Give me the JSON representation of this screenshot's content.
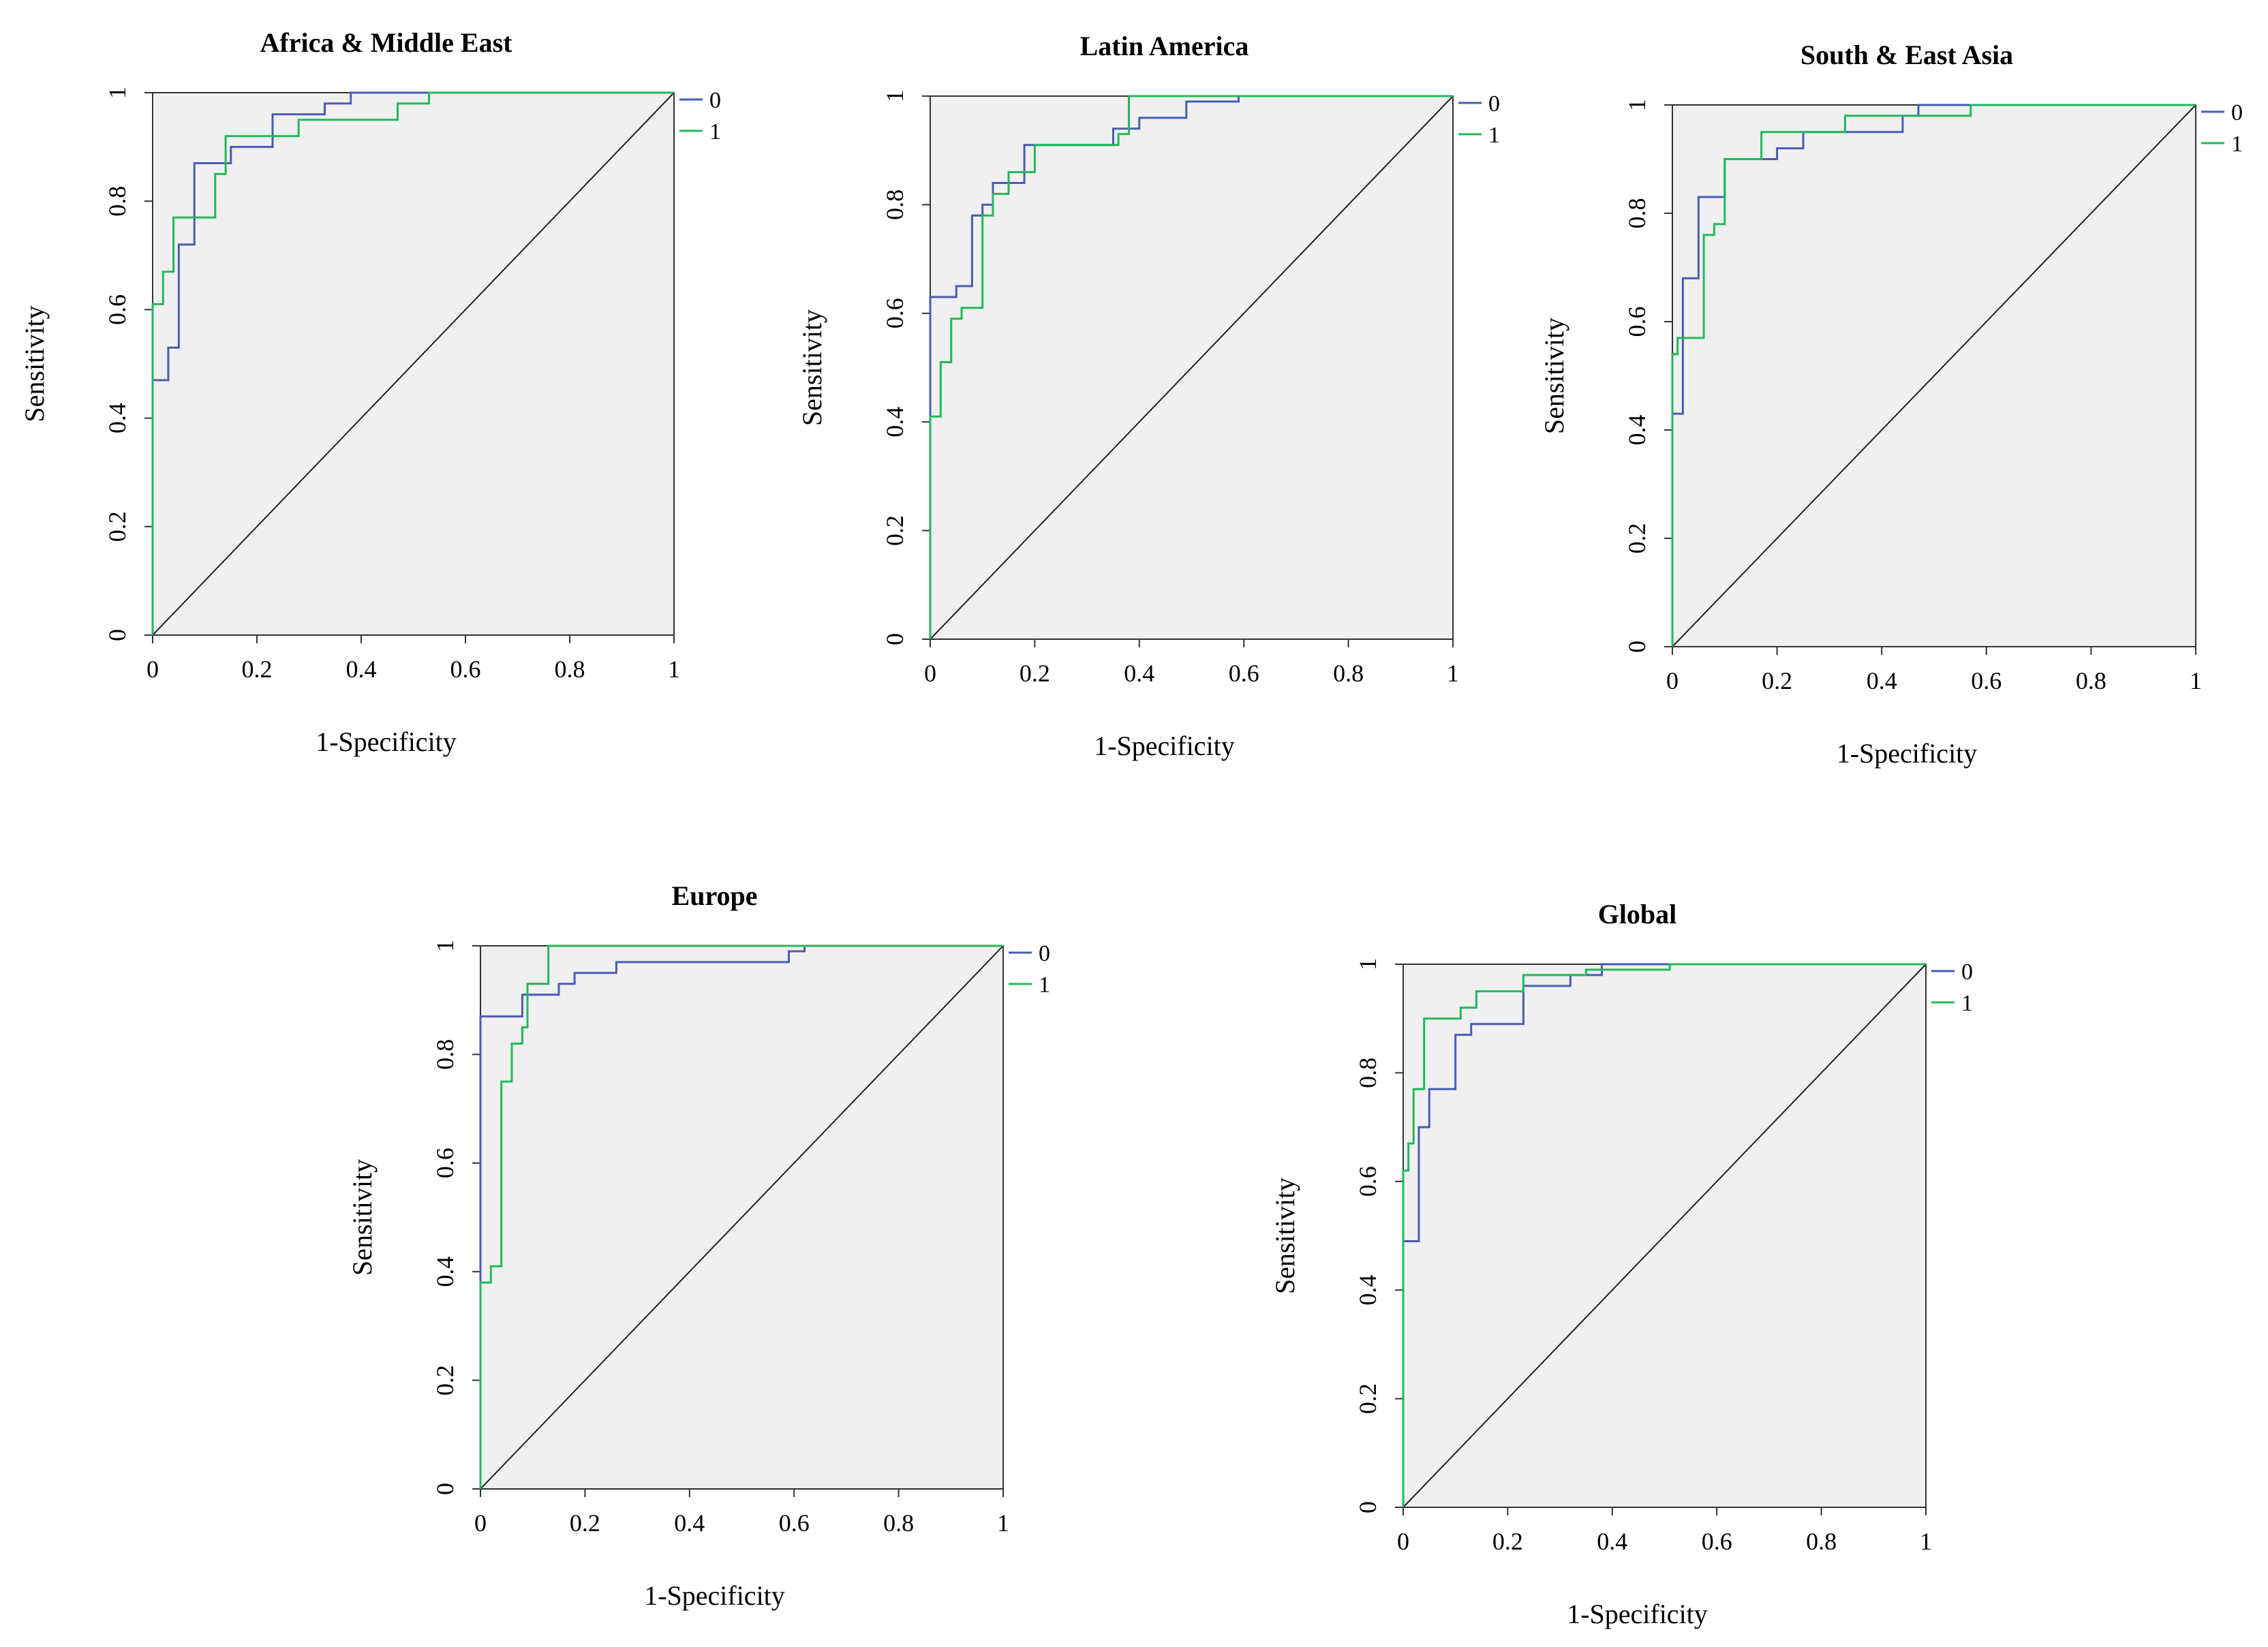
{
  "chart_data": [
    {
      "type": "line",
      "title": "Africa & Middle East",
      "xlabel": "1-Specificity",
      "ylabel": "Sensitivity",
      "xlim": [
        0,
        1
      ],
      "ylim": [
        0,
        1
      ],
      "xticks": [
        "0",
        "0.2",
        "0.4",
        "0.6",
        "0.8",
        "1"
      ],
      "yticks": [
        "0",
        "0.2",
        "0.4",
        "0.6",
        "0.8",
        "1"
      ],
      "legend": [
        "0",
        "1"
      ],
      "diagonal": true,
      "series": [
        {
          "name": "0",
          "color": "#4a5bb5",
          "x": [
            0,
            0,
            0.03,
            0.03,
            0.05,
            0.05,
            0.08,
            0.08,
            0.15,
            0.15,
            0.23,
            0.23,
            0.33,
            0.33,
            0.38,
            0.38,
            1
          ],
          "y": [
            0,
            0.47,
            0.47,
            0.53,
            0.53,
            0.72,
            0.72,
            0.87,
            0.87,
            0.9,
            0.9,
            0.96,
            0.96,
            0.98,
            0.98,
            1,
            1
          ]
        },
        {
          "name": "1",
          "color": "#1fba5a",
          "x": [
            0,
            0,
            0.02,
            0.02,
            0.04,
            0.04,
            0.12,
            0.12,
            0.14,
            0.14,
            0.28,
            0.28,
            0.47,
            0.47,
            0.53,
            0.53,
            1
          ],
          "y": [
            0,
            0.61,
            0.61,
            0.67,
            0.67,
            0.77,
            0.77,
            0.85,
            0.85,
            0.92,
            0.92,
            0.95,
            0.95,
            0.98,
            0.98,
            1,
            1
          ]
        }
      ]
    },
    {
      "type": "line",
      "title": "Latin America",
      "xlabel": "1-Specificity",
      "ylabel": "Sensitivity",
      "xlim": [
        0,
        1
      ],
      "ylim": [
        0,
        1
      ],
      "xticks": [
        "0",
        "0.2",
        "0.4",
        "0.6",
        "0.8",
        "1"
      ],
      "yticks": [
        "0",
        "0.2",
        "0.4",
        "0.6",
        "0.8",
        "1"
      ],
      "legend": [
        "0",
        "1"
      ],
      "diagonal": true,
      "series": [
        {
          "name": "0",
          "color": "#4a5bb5",
          "x": [
            0,
            0,
            0.05,
            0.05,
            0.08,
            0.08,
            0.1,
            0.1,
            0.12,
            0.12,
            0.18,
            0.18,
            0.35,
            0.35,
            0.4,
            0.4,
            0.49,
            0.49,
            0.59,
            0.59,
            1
          ],
          "y": [
            0,
            0.63,
            0.63,
            0.65,
            0.65,
            0.78,
            0.78,
            0.8,
            0.8,
            0.84,
            0.84,
            0.91,
            0.91,
            0.94,
            0.94,
            0.96,
            0.96,
            0.99,
            0.99,
            1,
            1
          ]
        },
        {
          "name": "1",
          "color": "#1fba5a",
          "x": [
            0,
            0,
            0.02,
            0.02,
            0.04,
            0.04,
            0.06,
            0.06,
            0.1,
            0.1,
            0.12,
            0.12,
            0.15,
            0.15,
            0.2,
            0.2,
            0.36,
            0.36,
            0.38,
            0.38,
            1
          ],
          "y": [
            0,
            0.41,
            0.41,
            0.51,
            0.51,
            0.59,
            0.59,
            0.61,
            0.61,
            0.78,
            0.78,
            0.82,
            0.82,
            0.86,
            0.86,
            0.91,
            0.91,
            0.93,
            0.93,
            1,
            1
          ]
        }
      ]
    },
    {
      "type": "line",
      "title": "South & East Asia",
      "xlabel": "1-Specificity",
      "ylabel": "Sensitivity",
      "xlim": [
        0,
        1
      ],
      "ylim": [
        0,
        1
      ],
      "xticks": [
        "0",
        "0.2",
        "0.4",
        "0.6",
        "0.8",
        "1"
      ],
      "yticks": [
        "0",
        "0.2",
        "0.4",
        "0.6",
        "0.8",
        "1"
      ],
      "legend": [
        "0",
        "1"
      ],
      "diagonal": true,
      "series": [
        {
          "name": "0",
          "color": "#4a5bb5",
          "x": [
            0,
            0,
            0.02,
            0.02,
            0.05,
            0.05,
            0.1,
            0.1,
            0.2,
            0.2,
            0.25,
            0.25,
            0.44,
            0.44,
            0.47,
            0.47,
            1
          ],
          "y": [
            0,
            0.43,
            0.43,
            0.68,
            0.68,
            0.83,
            0.83,
            0.9,
            0.9,
            0.92,
            0.92,
            0.95,
            0.95,
            0.98,
            0.98,
            1,
            1
          ]
        },
        {
          "name": "1",
          "color": "#1fba5a",
          "x": [
            0,
            0,
            0.01,
            0.01,
            0.06,
            0.06,
            0.08,
            0.08,
            0.1,
            0.1,
            0.17,
            0.17,
            0.33,
            0.33,
            0.57,
            0.57,
            1
          ],
          "y": [
            0,
            0.54,
            0.54,
            0.57,
            0.57,
            0.76,
            0.76,
            0.78,
            0.78,
            0.9,
            0.9,
            0.95,
            0.95,
            0.98,
            0.98,
            1,
            1
          ]
        }
      ]
    },
    {
      "type": "line",
      "title": "Europe",
      "xlabel": "1-Specificity",
      "ylabel": "Sensitivity",
      "xlim": [
        0,
        1
      ],
      "ylim": [
        0,
        1
      ],
      "xticks": [
        "0",
        "0.2",
        "0.4",
        "0.6",
        "0.8",
        "1"
      ],
      "yticks": [
        "0",
        "0.2",
        "0.4",
        "0.6",
        "0.8",
        "1"
      ],
      "legend": [
        "0",
        "1"
      ],
      "diagonal": true,
      "series": [
        {
          "name": "0",
          "color": "#4a5bb5",
          "x": [
            0,
            0,
            0.08,
            0.08,
            0.15,
            0.15,
            0.18,
            0.18,
            0.26,
            0.26,
            0.59,
            0.59,
            0.62,
            0.62,
            1
          ],
          "y": [
            0,
            0.87,
            0.87,
            0.91,
            0.91,
            0.93,
            0.93,
            0.95,
            0.95,
            0.97,
            0.97,
            0.99,
            0.99,
            1,
            1
          ]
        },
        {
          "name": "1",
          "color": "#1fba5a",
          "x": [
            0,
            0,
            0.02,
            0.02,
            0.04,
            0.04,
            0.06,
            0.06,
            0.08,
            0.08,
            0.09,
            0.09,
            0.13,
            0.13,
            1
          ],
          "y": [
            0,
            0.38,
            0.38,
            0.41,
            0.41,
            0.75,
            0.75,
            0.82,
            0.82,
            0.85,
            0.85,
            0.93,
            0.93,
            1,
            1
          ]
        }
      ]
    },
    {
      "type": "line",
      "title": "Global",
      "xlabel": "1-Specificity",
      "ylabel": "Sensitivity",
      "xlim": [
        0,
        1
      ],
      "ylim": [
        0,
        1
      ],
      "xticks": [
        "0",
        "0.2",
        "0.4",
        "0.6",
        "0.8",
        "1"
      ],
      "yticks": [
        "0",
        "0.2",
        "0.4",
        "0.6",
        "0.8",
        "1"
      ],
      "legend": [
        "0",
        "1"
      ],
      "diagonal": true,
      "series": [
        {
          "name": "0",
          "color": "#4a5bb5",
          "x": [
            0,
            0,
            0.03,
            0.03,
            0.05,
            0.05,
            0.1,
            0.1,
            0.13,
            0.13,
            0.23,
            0.23,
            0.32,
            0.32,
            0.38,
            0.38,
            1
          ],
          "y": [
            0,
            0.49,
            0.49,
            0.7,
            0.7,
            0.77,
            0.77,
            0.87,
            0.87,
            0.89,
            0.89,
            0.96,
            0.96,
            0.98,
            0.98,
            1,
            1
          ]
        },
        {
          "name": "1",
          "color": "#1fba5a",
          "x": [
            0,
            0,
            0.01,
            0.01,
            0.02,
            0.02,
            0.04,
            0.04,
            0.11,
            0.11,
            0.14,
            0.14,
            0.23,
            0.23,
            0.35,
            0.35,
            0.51,
            0.51,
            1
          ],
          "y": [
            0,
            0.62,
            0.62,
            0.67,
            0.67,
            0.77,
            0.77,
            0.9,
            0.9,
            0.92,
            0.92,
            0.95,
            0.95,
            0.98,
            0.98,
            0.99,
            0.99,
            1,
            1
          ]
        }
      ]
    }
  ]
}
